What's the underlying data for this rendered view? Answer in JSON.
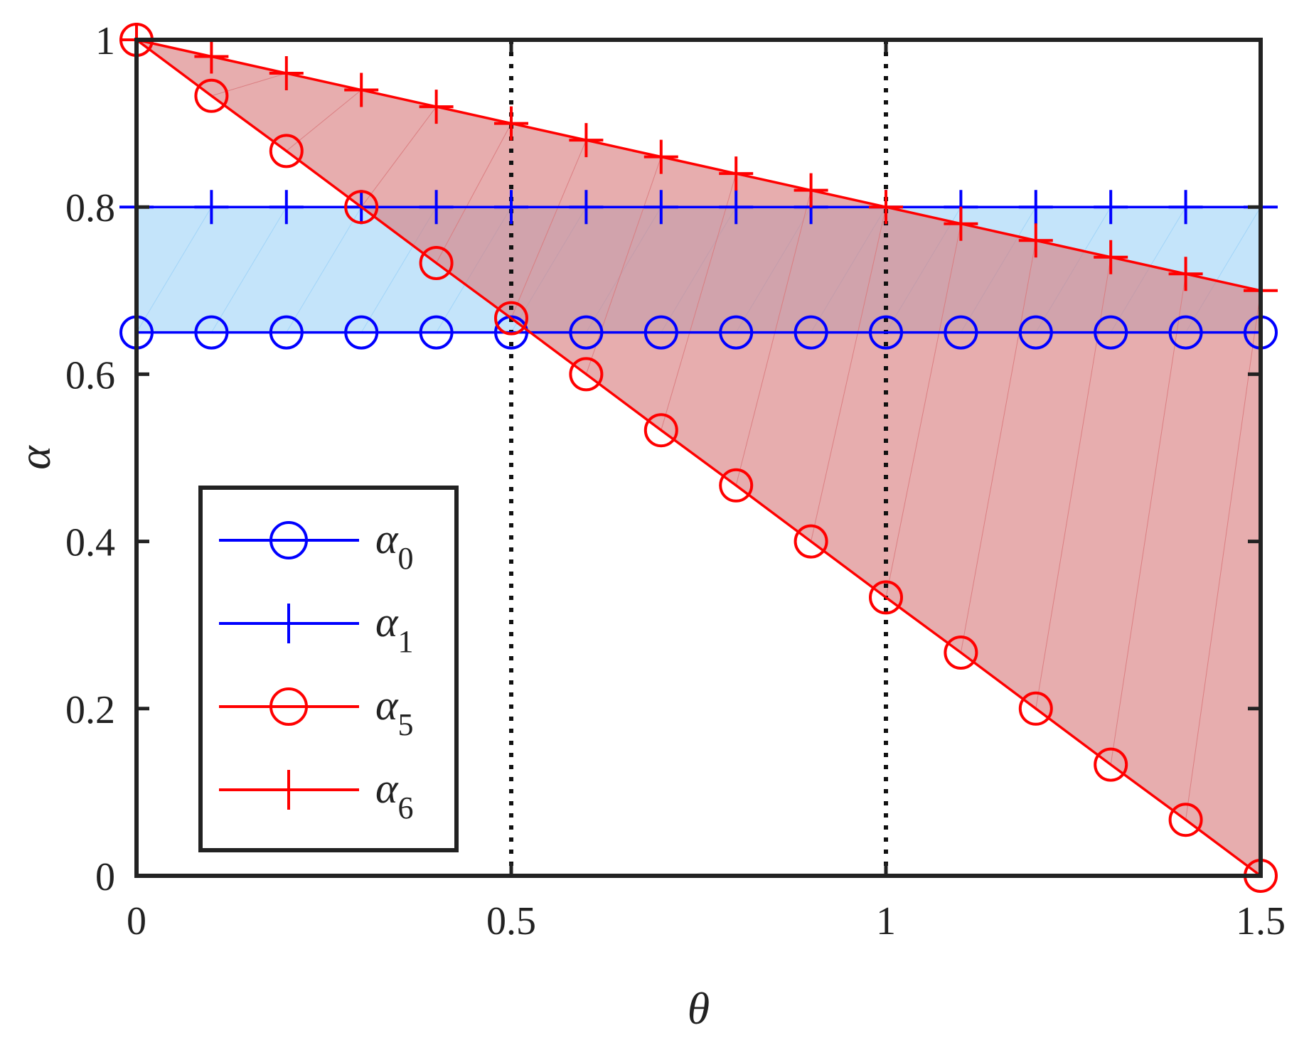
{
  "chart_data": {
    "type": "line",
    "xlabel": "θ",
    "ylabel": "α",
    "xlim": [
      0,
      1.5
    ],
    "ylim": [
      0,
      1
    ],
    "xticks": [
      0,
      0.5,
      1,
      1.5
    ],
    "xtick_labels": [
      "0",
      "0.5",
      "1",
      "1.5"
    ],
    "yticks": [
      0,
      0.2,
      0.4,
      0.6,
      0.8,
      1
    ],
    "ytick_labels": [
      "0",
      "0.2",
      "0.4",
      "0.6",
      "0.8",
      "1"
    ],
    "grid": false,
    "legend_position": "bottom-left",
    "x": [
      0,
      0.1,
      0.2,
      0.3,
      0.4,
      0.5,
      0.6,
      0.7,
      0.8,
      0.9,
      1.0,
      1.1,
      1.2,
      1.3,
      1.4,
      1.5
    ],
    "series": [
      {
        "name": "α",
        "subscript": "0",
        "color": "#0000ff",
        "marker": "circle",
        "values": [
          0.65,
          0.65,
          0.65,
          0.65,
          0.65,
          0.65,
          0.65,
          0.65,
          0.65,
          0.65,
          0.65,
          0.65,
          0.65,
          0.65,
          0.65,
          0.65
        ]
      },
      {
        "name": "α",
        "subscript": "1",
        "color": "#0000ff",
        "marker": "plus",
        "values": [
          0.8,
          0.8,
          0.8,
          0.8,
          0.8,
          0.8,
          0.8,
          0.8,
          0.8,
          0.8,
          0.8,
          0.8,
          0.8,
          0.8,
          0.8,
          0.8
        ]
      },
      {
        "name": "α",
        "subscript": "5",
        "color": "#ff0000",
        "marker": "circle",
        "values": [
          1.0,
          0.933,
          0.867,
          0.8,
          0.733,
          0.667,
          0.6,
          0.533,
          0.467,
          0.4,
          0.333,
          0.267,
          0.2,
          0.133,
          0.067,
          0.0
        ]
      },
      {
        "name": "α",
        "subscript": "6",
        "color": "#ff0000",
        "marker": "plus",
        "values": [
          1.0,
          0.98,
          0.96,
          0.94,
          0.92,
          0.9,
          0.88,
          0.86,
          0.84,
          0.82,
          0.8,
          0.78,
          0.76,
          0.74,
          0.72,
          0.7
        ]
      }
    ],
    "shaded_regions": [
      {
        "between": [
          "α0",
          "α1"
        ],
        "color": "#9fd3f7"
      },
      {
        "between": [
          "α5",
          "α6"
        ],
        "color": "#d97a7d"
      }
    ],
    "reference_lines": [
      {
        "orientation": "vertical",
        "x": 0.5,
        "style": "dotted",
        "color": "#111111"
      },
      {
        "orientation": "vertical",
        "x": 1.0,
        "style": "dotted",
        "color": "#111111"
      }
    ]
  }
}
